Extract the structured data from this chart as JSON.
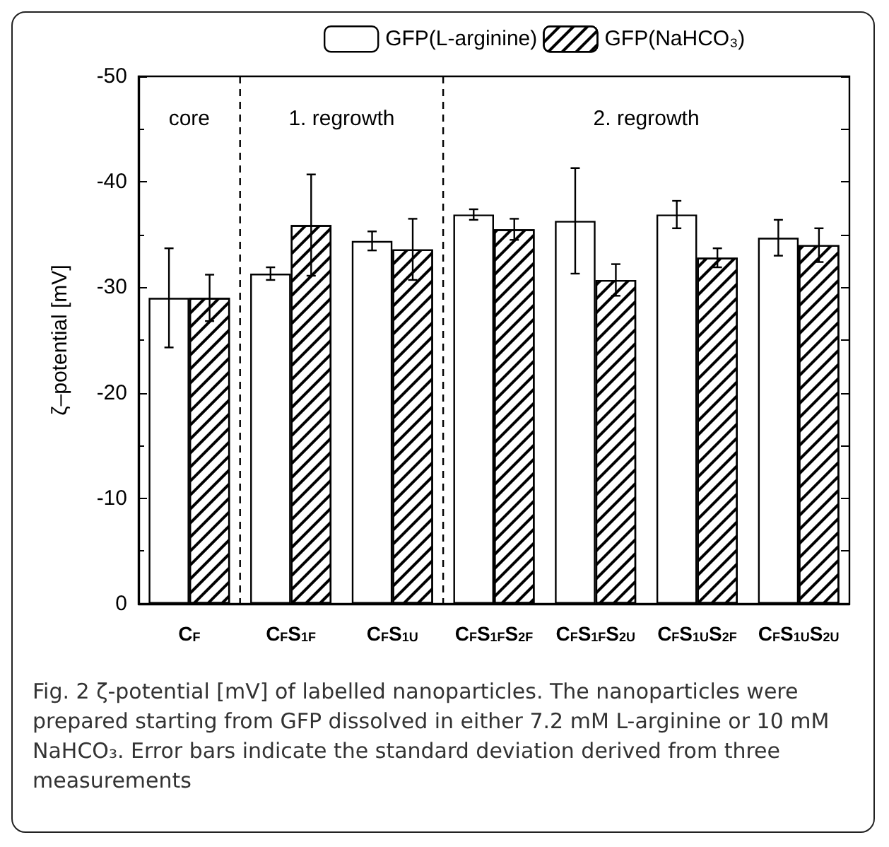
{
  "chart_data": {
    "type": "bar",
    "categories": [
      "C$_{F}$",
      "C$_{F}$S$_{1F}$",
      "C$_{F}$S$_{1U}$",
      "C$_{F}$S$_{1F}$S$_{2F}$",
      "C$_{F}$S$_{1F}$S$_{2U}$",
      "C$_{F}$S$_{1U}$S$_{2F}$",
      "C$_{F}$S$_{1U}$S$_{2U}$"
    ],
    "series": [
      {
        "name": "GFP(L-arginine)",
        "color": "#ffffff",
        "values": [
          -29,
          -31.3,
          -34.4,
          -36.9,
          -36.3,
          -36.9,
          -34.7
        ],
        "errors": [
          4.7,
          0.6,
          0.9,
          0.5,
          5.0,
          1.3,
          1.7
        ]
      },
      {
        "name": "GFP(NaHCO₃)",
        "color": "#ffffff",
        "values": [
          -29,
          -35.9,
          -33.6,
          -35.5,
          -30.7,
          -32.8,
          -34.0
        ],
        "errors": [
          2.2,
          4.8,
          2.9,
          1.0,
          1.5,
          0.9,
          1.6
        ]
      }
    ],
    "ylabel": "ζ–potential [mV]",
    "ylim": [
      0,
      -50
    ],
    "yticks": [
      -50,
      -40,
      -30,
      -20,
      -10,
      0
    ],
    "legend": "top",
    "annotations": [
      "core",
      "1. regrowth",
      "2. regrowth",
      "Fig. 2 ζ-potential [mV] of labelled nanoparticles. The nanoparticles were prepared starting from GFP dissolved in either 7.2 mM L-arginine or 10 mM NaHCO₃. Error bars indicate the standard deviation derived from three measurements"
    ]
  }
}
